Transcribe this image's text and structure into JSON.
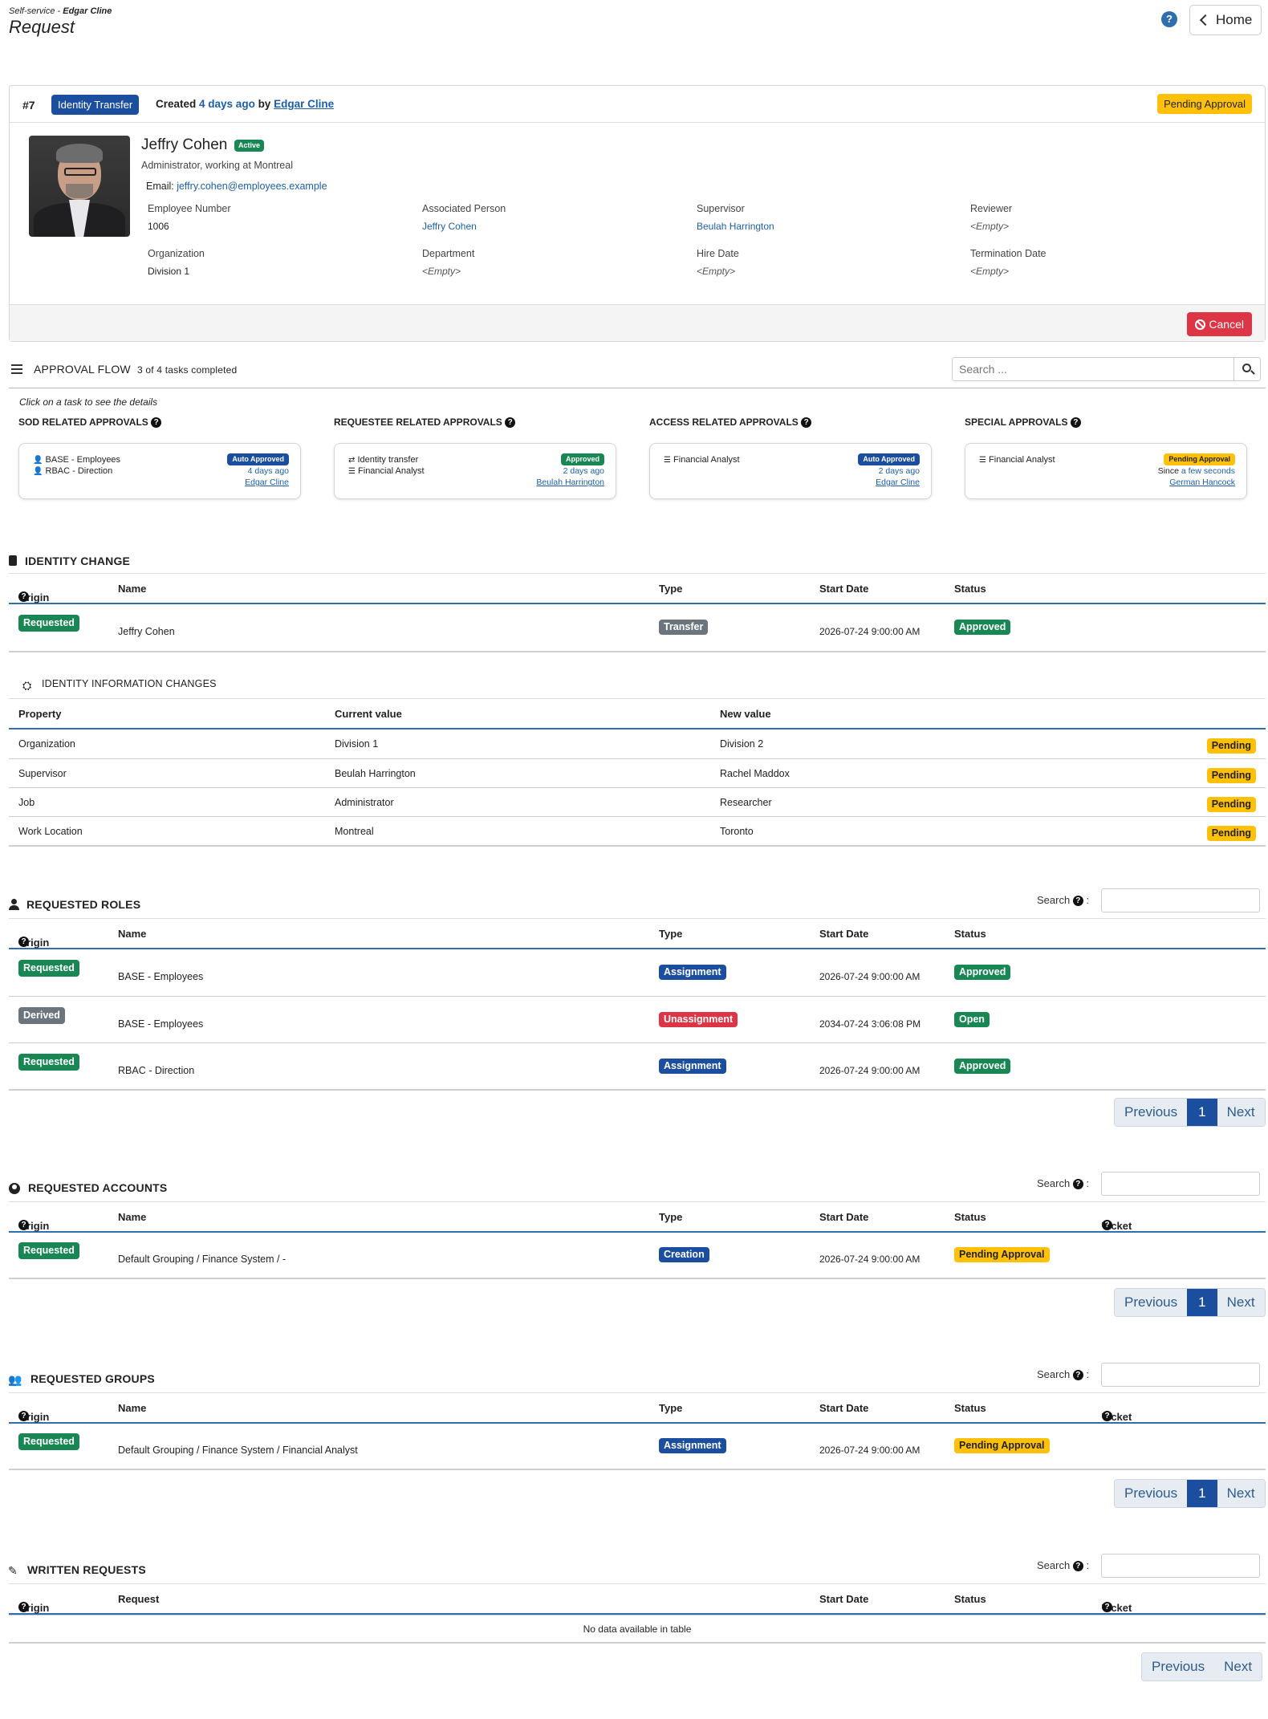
{
  "header": {
    "breadcrumb_prefix": "Self-service - ",
    "breadcrumb_user": "Edgar Cline",
    "title": "Request",
    "help": "?",
    "home_label": "Home"
  },
  "request": {
    "number": "#7",
    "type_badge": "Identity Transfer",
    "created_prefix": "Created ",
    "created_ago": "4 days ago",
    "created_by_prefix": " by ",
    "created_by": "Edgar Cline",
    "status": "Pending Approval"
  },
  "identity": {
    "name": "Jeffry Cohen",
    "active_badge": "Active",
    "subtitle": "Administrator, working at Montreal",
    "email_label": "Email: ",
    "email": "jeffry.cohen@employees.example",
    "fields": [
      {
        "label": "Employee Number",
        "value": "1006",
        "kind": "plain"
      },
      {
        "label": "Associated Person",
        "value": "Jeffry Cohen",
        "kind": "link"
      },
      {
        "label": "Supervisor",
        "value": "Beulah Harrington",
        "kind": "link"
      },
      {
        "label": "Reviewer",
        "value": "<Empty>",
        "kind": "empty"
      },
      {
        "label": "Organization",
        "value": "Division 1",
        "kind": "plain"
      },
      {
        "label": "Department",
        "value": "<Empty>",
        "kind": "empty"
      },
      {
        "label": "Hire Date",
        "value": "<Empty>",
        "kind": "empty"
      },
      {
        "label": "Termination Date",
        "value": "<Empty>",
        "kind": "empty"
      }
    ],
    "cancel_label": "Cancel"
  },
  "approval_flow": {
    "title": "APPROVAL FLOW",
    "progress": "3 of 4 tasks completed",
    "search_placeholder": "Search ...",
    "hint": "Click on a task to see the details",
    "columns": [
      {
        "title": "SOD RELATED APPROVALS",
        "items": [
          {
            "icon": "user-icon",
            "text": "BASE - Employees"
          },
          {
            "icon": "user-icon",
            "text": "RBAC - Direction"
          }
        ],
        "badge": "Auto Approved",
        "badge_color": "blue",
        "when_prefix": "",
        "when": "4 days ago",
        "who": "Edgar Cline"
      },
      {
        "title": "REQUESTEE RELATED APPROVALS",
        "items": [
          {
            "icon": "transfer-icon",
            "text": "Identity transfer"
          },
          {
            "icon": "layers-icon",
            "text": "Financial Analyst"
          }
        ],
        "badge": "Approved",
        "badge_color": "green",
        "when_prefix": "",
        "when": "2 days ago",
        "who": "Beulah Harrington"
      },
      {
        "title": "ACCESS RELATED APPROVALS",
        "items": [
          {
            "icon": "layers-icon",
            "text": "Financial Analyst"
          }
        ],
        "badge": "Auto Approved",
        "badge_color": "blue",
        "when_prefix": "",
        "when": "2 days ago",
        "who": "Edgar Cline"
      },
      {
        "title": "SPECIAL APPROVALS",
        "items": [
          {
            "icon": "layers-icon",
            "text": "Financial Analyst"
          }
        ],
        "badge": "Pending Approval",
        "badge_color": "yellow",
        "when_prefix": "Since ",
        "when": "a few seconds",
        "who": "German Hancock"
      }
    ]
  },
  "identity_change": {
    "title": "IDENTITY CHANGE",
    "headers": {
      "origin": "Origin",
      "name": "Name",
      "type": "Type",
      "start": "Start Date",
      "status": "Status"
    },
    "rows": [
      {
        "origin": "Requested",
        "origin_color": "green",
        "name": "Jeffry Cohen",
        "type": "Transfer",
        "type_color": "grey",
        "start": "2026-07-24 9:00:00 AM",
        "status": "Approved",
        "status_color": "green"
      }
    ]
  },
  "info_changes": {
    "title": "IDENTITY INFORMATION CHANGES",
    "headers": {
      "property": "Property",
      "current": "Current value",
      "new": "New value"
    },
    "rows": [
      {
        "property": "Organization",
        "current": "Division 1",
        "new": "Division 2",
        "status": "Pending"
      },
      {
        "property": "Supervisor",
        "current": "Beulah Harrington",
        "new": "Rachel Maddox",
        "status": "Pending"
      },
      {
        "property": "Job",
        "current": "Administrator",
        "new": "Researcher",
        "status": "Pending"
      },
      {
        "property": "Work Location",
        "current": "Montreal",
        "new": "Toronto",
        "status": "Pending"
      }
    ]
  },
  "roles": {
    "title": "REQUESTED ROLES",
    "search_label": "Search",
    "headers": {
      "origin": "Origin",
      "name": "Name",
      "type": "Type",
      "start": "Start Date",
      "status": "Status"
    },
    "rows": [
      {
        "origin": "Requested",
        "origin_color": "green",
        "name": "BASE - Employees",
        "type": "Assignment",
        "type_color": "blue",
        "start": "2026-07-24 9:00:00 AM",
        "status": "Approved",
        "status_color": "green"
      },
      {
        "origin": "Derived",
        "origin_color": "grey",
        "name": "BASE - Employees",
        "type": "Unassignment",
        "type_color": "red",
        "start": "2034-07-24 3:06:08 PM",
        "status": "Open",
        "status_color": "green"
      },
      {
        "origin": "Requested",
        "origin_color": "green",
        "name": "RBAC - Direction",
        "type": "Assignment",
        "type_color": "blue",
        "start": "2026-07-24 9:00:00 AM",
        "status": "Approved",
        "status_color": "green"
      }
    ]
  },
  "accounts": {
    "title": "REQUESTED ACCOUNTS",
    "search_label": "Search",
    "headers": {
      "origin": "Origin",
      "name": "Name",
      "type": "Type",
      "start": "Start Date",
      "status": "Status",
      "ticket": "Ticket"
    },
    "rows": [
      {
        "origin": "Requested",
        "origin_color": "green",
        "name": "Default Grouping / Finance System / -",
        "type": "Creation",
        "type_color": "blue",
        "start": "2026-07-24 9:00:00 AM",
        "status": "Pending Approval",
        "status_color": "yellow"
      }
    ]
  },
  "groups": {
    "title": "REQUESTED GROUPS",
    "search_label": "Search",
    "headers": {
      "origin": "Origin",
      "name": "Name",
      "type": "Type",
      "start": "Start Date",
      "status": "Status",
      "ticket": "Ticket"
    },
    "rows": [
      {
        "origin": "Requested",
        "origin_color": "green",
        "name": "Default Grouping / Finance System / Financial Analyst",
        "type": "Assignment",
        "type_color": "blue",
        "start": "2026-07-24 9:00:00 AM",
        "status": "Pending Approval",
        "status_color": "yellow"
      }
    ]
  },
  "written": {
    "title": "WRITTEN REQUESTS",
    "search_label": "Search",
    "headers": {
      "origin": "Origin",
      "request": "Request",
      "start": "Start Date",
      "status": "Status",
      "ticket": "Ticket"
    },
    "empty": "No data available in table"
  },
  "pager": {
    "previous": "Previous",
    "page": "1",
    "next": "Next"
  },
  "colors": {
    "green": "#198754",
    "blue": "#1c4ea0",
    "grey": "#6c757d",
    "red": "#dc3545",
    "yellow": "#ffc107"
  }
}
